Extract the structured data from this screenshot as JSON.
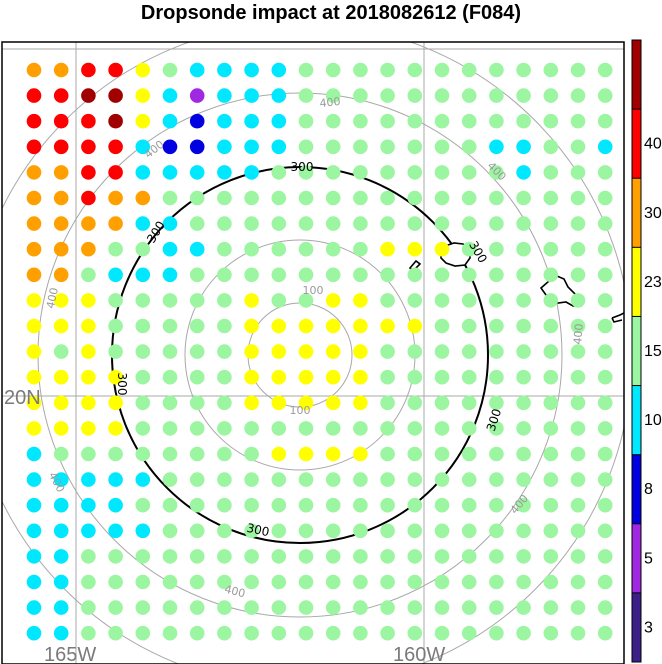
{
  "title": "Dropsonde impact at 2018082612 (F084)",
  "geo_labels": {
    "lat": "20N",
    "lon_left": "165W",
    "lon_right": "160W"
  },
  "range_labels": {
    "r100": "100",
    "r300": "300",
    "r400": "400"
  },
  "colorbar": {
    "colors": [
      "#3d1f8a",
      "#a028e0",
      "#0000e0",
      "#00e8ff",
      "#9cf5a0",
      "#ffff00",
      "#ffa000",
      "#ff0000",
      "#a00000"
    ],
    "labels": [
      "3",
      "5",
      "8",
      "10",
      "15",
      "23",
      "30",
      "40"
    ]
  },
  "grid_rows": [
    "6677543333444444444444",
    "7788531333444444444444",
    "7778532333444444444444",
    "7777322333444444433443",
    "6677333334444444443444",
    "6676644444444444444444",
    "6666334444444444444444",
    "6664433444444555444444",
    "6643334444444444444444",
    "5554444454455444444444",
    "5554444455555554444444",
    "5454444455555444444444",
    "5555444455555444444444",
    "5555444455555444444444",
    "5555444444444444444444",
    "3444444445555444444444",
    "3333344444444444444444",
    "3333444444444444444444",
    "3333344444444444444444",
    "3344444444444444444444",
    "3344444444444444444444",
    "3344444444444444444444",
    "3344444444444444444444"
  ]
}
